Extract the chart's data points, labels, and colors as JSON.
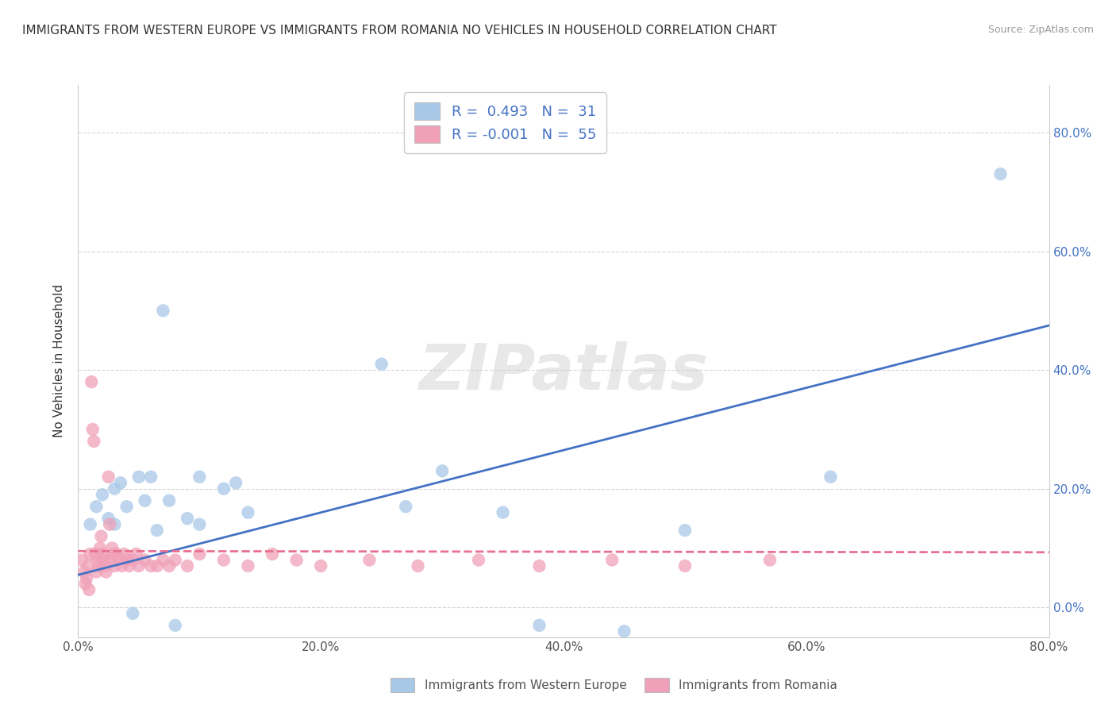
{
  "title": "IMMIGRANTS FROM WESTERN EUROPE VS IMMIGRANTS FROM ROMANIA NO VEHICLES IN HOUSEHOLD CORRELATION CHART",
  "source": "Source: ZipAtlas.com",
  "ylabel": "No Vehicles in Household",
  "xlim": [
    0,
    0.8
  ],
  "ylim": [
    -0.05,
    0.88
  ],
  "xticks": [
    0.0,
    0.2,
    0.4,
    0.6,
    0.8
  ],
  "xticklabels": [
    "0.0%",
    "20.0%",
    "40.0%",
    "60.0%",
    "80.0%"
  ],
  "yticks_right": [
    0.0,
    0.2,
    0.4,
    0.6,
    0.8
  ],
  "yticklabels_right": [
    "0.0%",
    "20.0%",
    "40.0%",
    "60.0%",
    "80.0%"
  ],
  "blue_color": "#A8C8E8",
  "pink_color": "#F0A0B8",
  "blue_line_color": "#4472C4",
  "pink_line_color": "#E87090",
  "grid_color": "#CCCCCC",
  "background_color": "#FFFFFF",
  "title_fontsize": 11,
  "axis_label_fontsize": 11,
  "tick_fontsize": 11,
  "watermark": "ZIPatlas",
  "blue_scatter_x": [
    0.01,
    0.015,
    0.02,
    0.025,
    0.03,
    0.03,
    0.035,
    0.04,
    0.045,
    0.05,
    0.055,
    0.06,
    0.065,
    0.07,
    0.075,
    0.08,
    0.09,
    0.1,
    0.1,
    0.12,
    0.13,
    0.14,
    0.25,
    0.27,
    0.3,
    0.35,
    0.38,
    0.45,
    0.5,
    0.62,
    0.76
  ],
  "blue_scatter_y": [
    0.14,
    0.17,
    0.19,
    0.15,
    0.2,
    0.14,
    0.21,
    0.17,
    -0.01,
    0.22,
    0.18,
    0.22,
    0.13,
    0.5,
    0.18,
    -0.03,
    0.15,
    0.22,
    0.14,
    0.2,
    0.21,
    0.16,
    0.41,
    0.17,
    0.23,
    0.16,
    -0.03,
    -0.04,
    0.13,
    0.22,
    0.73
  ],
  "pink_scatter_x": [
    0.003,
    0.005,
    0.006,
    0.007,
    0.008,
    0.009,
    0.01,
    0.011,
    0.012,
    0.013,
    0.014,
    0.015,
    0.016,
    0.017,
    0.018,
    0.019,
    0.02,
    0.021,
    0.022,
    0.023,
    0.025,
    0.026,
    0.027,
    0.028,
    0.029,
    0.03,
    0.032,
    0.034,
    0.036,
    0.038,
    0.04,
    0.042,
    0.045,
    0.048,
    0.05,
    0.055,
    0.06,
    0.065,
    0.07,
    0.075,
    0.08,
    0.09,
    0.1,
    0.12,
    0.14,
    0.16,
    0.18,
    0.2,
    0.24,
    0.28,
    0.33,
    0.38,
    0.44,
    0.5,
    0.57
  ],
  "pink_scatter_y": [
    0.08,
    0.06,
    0.04,
    0.05,
    0.07,
    0.03,
    0.09,
    0.38,
    0.3,
    0.28,
    0.09,
    0.06,
    0.08,
    0.07,
    0.1,
    0.12,
    0.09,
    0.08,
    0.07,
    0.06,
    0.22,
    0.14,
    0.08,
    0.1,
    0.09,
    0.07,
    0.09,
    0.08,
    0.07,
    0.09,
    0.08,
    0.07,
    0.08,
    0.09,
    0.07,
    0.08,
    0.07,
    0.07,
    0.08,
    0.07,
    0.08,
    0.07,
    0.09,
    0.08,
    0.07,
    0.09,
    0.08,
    0.07,
    0.08,
    0.07,
    0.08,
    0.07,
    0.08,
    0.07,
    0.08
  ],
  "blue_line_x": [
    0.0,
    0.8
  ],
  "blue_line_y_start": 0.055,
  "blue_line_y_end": 0.475,
  "pink_line_x": [
    0.0,
    0.8
  ],
  "pink_line_y_start": 0.095,
  "pink_line_y_end": 0.093,
  "legend_label1": "R =  0.493   N =  31",
  "legend_label2": "R = -0.001   N =  55",
  "bottom_label1": "Immigrants from Western Europe",
  "bottom_label2": "Immigrants from Romania"
}
